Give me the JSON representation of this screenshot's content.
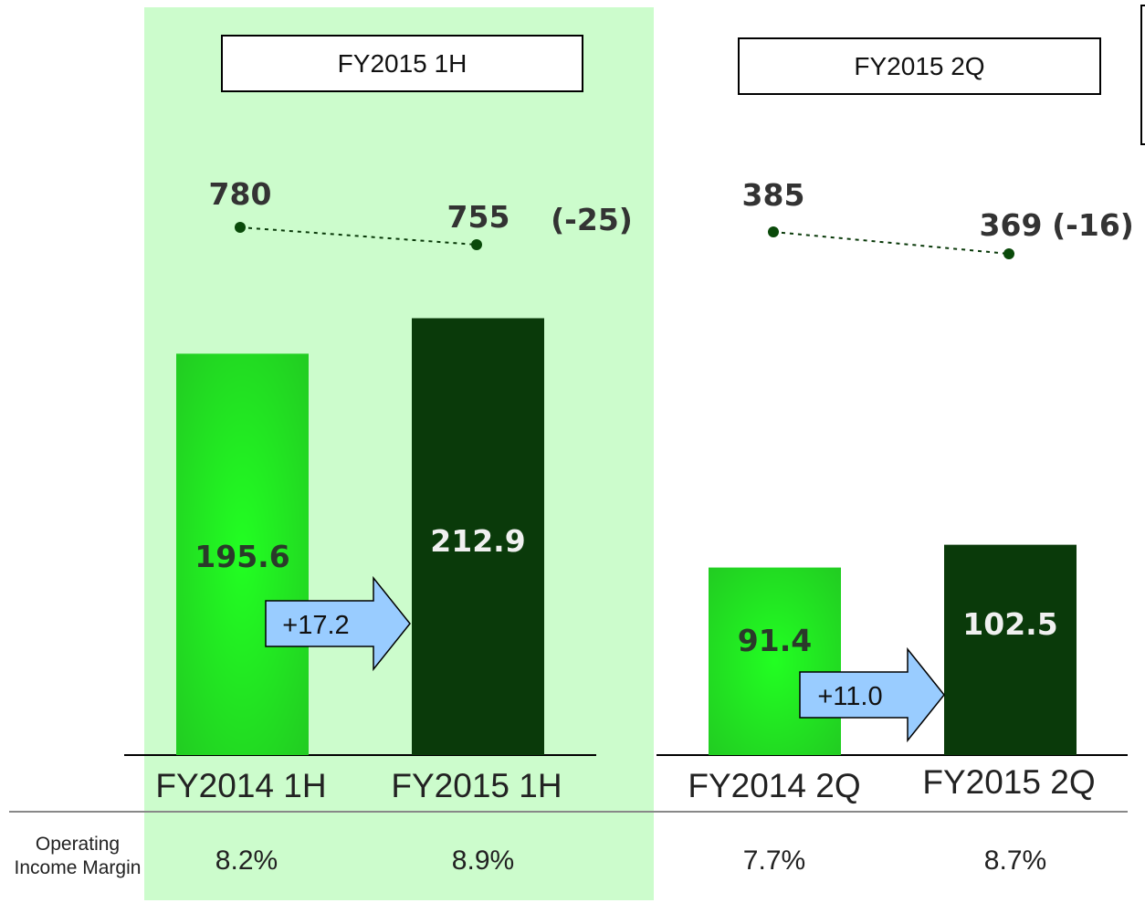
{
  "chart_data": [
    {
      "type": "bar",
      "title": "FY2015 1H",
      "categories": [
        "FY2014 1H",
        "FY2015 1H"
      ],
      "values": [
        195.6,
        212.9
      ],
      "value_labels": [
        "195.6",
        "212.9"
      ],
      "change_label": "+17.2",
      "colors": [
        "#22dd22",
        "#0a3a0a"
      ],
      "line_series": {
        "values": [
          780,
          755
        ],
        "labels": [
          "780",
          "755"
        ],
        "change_label": "(-25)"
      },
      "operating_income_margin": [
        "8.2%",
        "8.9%"
      ],
      "highlighted": true
    },
    {
      "type": "bar",
      "title": "FY2015 2Q",
      "categories": [
        "FY2014 2Q",
        "FY2015 2Q"
      ],
      "values": [
        91.4,
        102.5
      ],
      "value_labels": [
        "91.4",
        "102.5"
      ],
      "change_label": "+11.0",
      "colors": [
        "#22dd22",
        "#0a3a0a"
      ],
      "line_series": {
        "values": [
          385,
          369
        ],
        "labels": [
          "385",
          "369"
        ],
        "change_label": "(-16)"
      },
      "operating_income_margin": [
        "7.7%",
        "8.7%"
      ],
      "highlighted": false
    }
  ],
  "margin_row_label": "Operating Income Margin",
  "colors": {
    "highlight_bg": "#ccfccc",
    "arrow_fill": "#99ccff",
    "dot": "#0a4a0a",
    "value_text": "#333333"
  }
}
